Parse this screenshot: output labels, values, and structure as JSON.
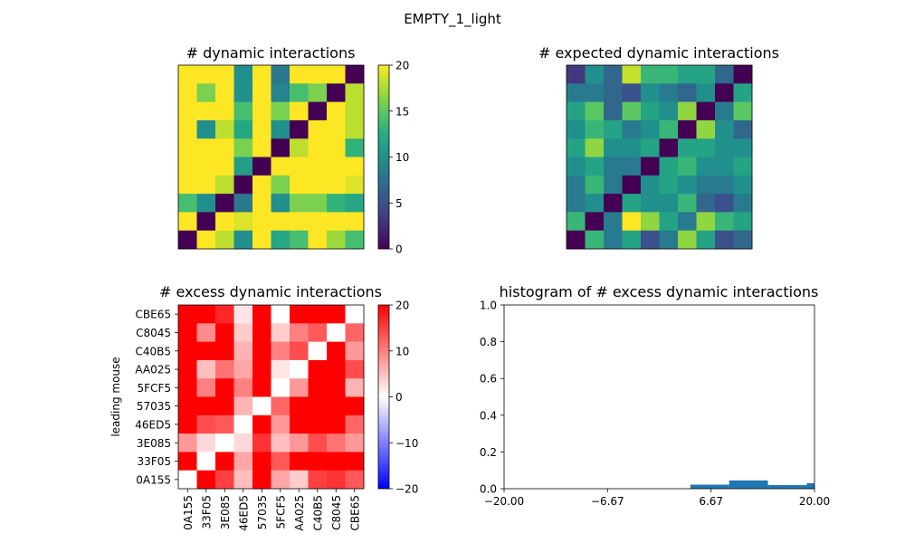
{
  "figure": {
    "suptitle": "EMPTY_1_light"
  },
  "mouse_ids": [
    "0A155",
    "33F05",
    "3E085",
    "46ED5",
    "57035",
    "5FCF5",
    "AA025",
    "C40B5",
    "C8045",
    "CBE65"
  ],
  "chart_data": [
    {
      "type": "heatmap",
      "title": "# dynamic interactions",
      "colormap": "viridis",
      "vmin": 0,
      "vmax": 20,
      "colorbar_ticks": [
        0,
        5,
        10,
        15,
        20
      ],
      "rows_top_to_bottom": [
        [
          20,
          20,
          20,
          10,
          20,
          8,
          20,
          20,
          20,
          0
        ],
        [
          20,
          16,
          20,
          10,
          20,
          9,
          14,
          16,
          0,
          18
        ],
        [
          20,
          20,
          20,
          14,
          20,
          16,
          20,
          0,
          20,
          18
        ],
        [
          20,
          10,
          18,
          12,
          20,
          10,
          0,
          20,
          20,
          18
        ],
        [
          20,
          20,
          20,
          16,
          20,
          0,
          18,
          20,
          20,
          13
        ],
        [
          20,
          20,
          20,
          11,
          0,
          20,
          20,
          20,
          20,
          20
        ],
        [
          20,
          20,
          18,
          0,
          20,
          16,
          20,
          20,
          20,
          19
        ],
        [
          14,
          10,
          0,
          8,
          20,
          10,
          16,
          16,
          13,
          12
        ],
        [
          20,
          0,
          20,
          19,
          20,
          20,
          20,
          20,
          20,
          20
        ],
        [
          0,
          20,
          18,
          10,
          20,
          12,
          14,
          20,
          17,
          14
        ]
      ]
    },
    {
      "type": "heatmap",
      "title": "# expected dynamic interactions",
      "colormap": "viridis",
      "rows_top_to_bottom": [
        [
          2,
          6,
          4,
          11,
          8,
          8,
          7,
          7,
          4,
          0
        ],
        [
          5,
          5,
          4,
          3,
          6,
          5,
          4,
          6,
          0,
          7
        ],
        [
          7,
          9,
          4,
          9,
          7,
          6,
          10,
          0,
          5,
          9
        ],
        [
          6,
          8,
          7,
          5,
          6,
          8,
          0,
          10,
          6,
          4
        ],
        [
          7,
          10,
          6,
          6,
          7,
          0,
          7,
          7,
          6,
          6
        ],
        [
          6,
          7,
          5,
          5,
          0,
          7,
          8,
          6,
          6,
          7
        ],
        [
          5,
          8,
          5,
          0,
          6,
          7,
          6,
          5,
          5,
          6
        ],
        [
          5,
          6,
          0,
          7,
          6,
          6,
          8,
          4,
          3,
          5
        ],
        [
          8,
          0,
          5,
          12,
          10,
          7,
          5,
          10,
          8,
          7
        ],
        [
          0,
          8,
          5,
          7,
          3,
          5,
          10,
          7,
          3,
          4
        ]
      ]
    },
    {
      "type": "heatmap",
      "title": "# excess dynamic interactions",
      "colormap": "bwr",
      "vmin": -20,
      "vmax": 20,
      "colorbar_ticks": [
        -20,
        -10,
        0,
        10,
        20
      ],
      "ylabel": "leading mouse",
      "row_labels_top_to_bottom": [
        "CBE65",
        "C8045",
        "C40B5",
        "AA025",
        "5FCF5",
        "57035",
        "46ED5",
        "3E085",
        "33F05",
        "0A155"
      ],
      "col_labels": [
        "0A155",
        "33F05",
        "3E085",
        "46ED5",
        "57035",
        "5FCF5",
        "AA025",
        "C40B5",
        "C8045",
        "CBE65"
      ],
      "rows_top_to_bottom": [
        [
          20,
          20,
          17,
          2,
          20,
          0,
          20,
          20,
          20,
          0
        ],
        [
          20,
          9,
          20,
          4,
          20,
          4,
          10,
          13,
          0,
          12
        ],
        [
          20,
          20,
          20,
          6,
          20,
          10,
          14,
          0,
          20,
          8
        ],
        [
          20,
          5,
          11,
          7,
          20,
          2,
          0,
          20,
          20,
          14
        ],
        [
          20,
          10,
          20,
          10,
          20,
          0,
          8,
          20,
          20,
          6
        ],
        [
          20,
          20,
          20,
          6,
          0,
          12,
          20,
          20,
          20,
          20
        ],
        [
          20,
          14,
          13,
          0,
          20,
          8,
          20,
          20,
          20,
          12
        ],
        [
          8,
          3,
          0,
          3,
          16,
          5,
          8,
          14,
          11,
          8
        ],
        [
          20,
          0,
          20,
          7,
          20,
          13,
          20,
          20,
          20,
          20
        ],
        [
          0,
          20,
          15,
          5,
          20,
          7,
          4,
          15,
          16,
          13
        ]
      ]
    },
    {
      "type": "bar",
      "title": "histogram of # excess dynamic interactions",
      "xlim": [
        -20,
        20
      ],
      "ylim": [
        0,
        1
      ],
      "xticks": [
        -20.0,
        -6.67,
        6.67,
        20.0
      ],
      "xtick_labels": [
        "−20.00",
        "−6.67",
        "6.67",
        "20.00"
      ],
      "yticks": [
        0.0,
        0.2,
        0.4,
        0.6,
        0.8,
        1.0
      ],
      "ytick_labels": [
        "0.0",
        "0.2",
        "0.4",
        "0.6",
        "0.8",
        "1.0"
      ],
      "bins": [
        {
          "x0": 4.0,
          "x1": 9.0,
          "value": 0.022
        },
        {
          "x0": 9.0,
          "x1": 14.0,
          "value": 0.045
        },
        {
          "x0": 14.0,
          "x1": 19.0,
          "value": 0.02
        },
        {
          "x0": 19.0,
          "x1": 24.0,
          "value": 0.03
        }
      ],
      "color": "#1f77b4"
    }
  ]
}
